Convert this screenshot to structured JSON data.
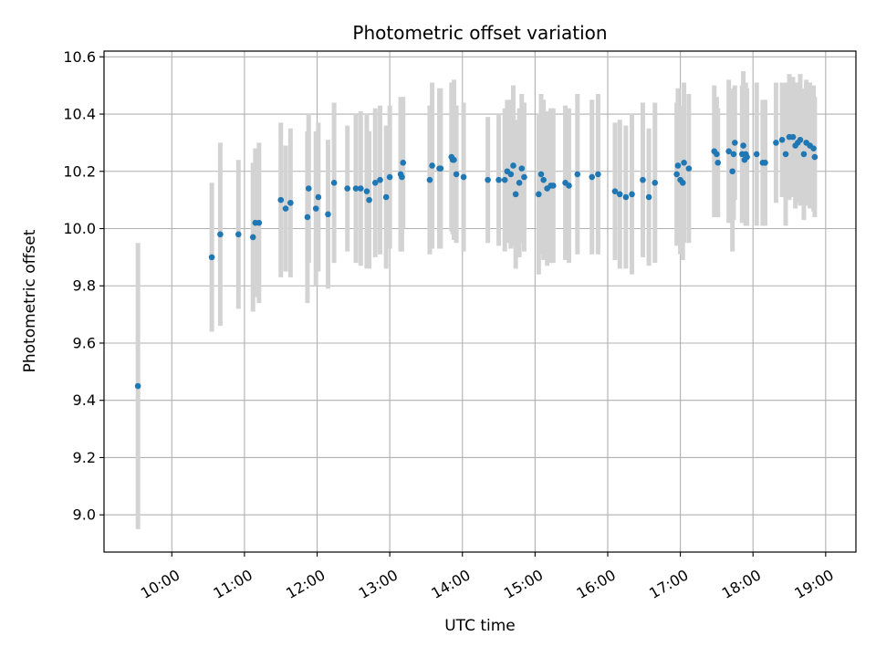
{
  "chart_data": {
    "type": "scatter",
    "title": "Photometric offset variation",
    "xlabel": "UTC time",
    "ylabel": "Photometric offset",
    "xlim": [
      "09:04",
      "19:25"
    ],
    "ylim": [
      8.87,
      10.62
    ],
    "x_ticks": [
      "10:00",
      "11:00",
      "12:00",
      "13:00",
      "14:00",
      "15:00",
      "16:00",
      "17:00",
      "18:00",
      "19:00"
    ],
    "y_ticks": [
      "9.0",
      "9.2",
      "9.4",
      "9.6",
      "9.8",
      "10.0",
      "10.2",
      "10.4",
      "10.6"
    ],
    "grid": true,
    "colors": {
      "points": "#1f77b4",
      "errorbars": "#d3d3d3",
      "grid": "#b0b0b0"
    },
    "series": [
      {
        "x": [
          "09:32",
          "10:33",
          "10:40",
          "10:55",
          "11:07",
          "11:09",
          "11:12",
          "11:30",
          "11:34",
          "11:38",
          "11:52",
          "11:53",
          "11:59",
          "12:01",
          "12:09",
          "12:14",
          "12:25",
          "12:32",
          "12:36",
          "12:41",
          "12:43",
          "12:48",
          "12:52",
          "12:57",
          "13:00",
          "13:09",
          "13:10",
          "13:11",
          "13:33",
          "13:35",
          "13:41",
          "13:42",
          "13:51",
          "13:52",
          "13:53",
          "13:55",
          "14:01",
          "14:21",
          "14:30",
          "14:35",
          "14:37",
          "14:40",
          "14:42",
          "14:44",
          "14:47",
          "14:49",
          "14:51",
          "15:03",
          "15:05",
          "15:07",
          "15:10",
          "15:13",
          "15:15",
          "15:25",
          "15:28",
          "15:35",
          "15:47",
          "15:52",
          "16:06",
          "16:10",
          "16:15",
          "16:20",
          "16:29",
          "16:34",
          "16:39",
          "16:57",
          "16:58",
          "17:00",
          "17:02",
          "17:03",
          "17:07",
          "17:28",
          "17:30",
          "17:31",
          "17:40",
          "17:43",
          "17:44",
          "17:45",
          "17:51",
          "17:52",
          "17:53",
          "17:54",
          "17:55",
          "18:03",
          "18:08",
          "18:10",
          "18:19",
          "18:24",
          "18:27",
          "18:30",
          "18:33",
          "18:35",
          "18:37",
          "18:39",
          "18:42",
          "18:44",
          "18:47",
          "18:50",
          "18:51"
        ],
        "y": [
          9.45,
          9.9,
          9.98,
          9.98,
          9.97,
          10.02,
          10.02,
          10.1,
          10.07,
          10.09,
          10.04,
          10.14,
          10.07,
          10.11,
          10.05,
          10.16,
          10.14,
          10.14,
          10.14,
          10.13,
          10.1,
          10.16,
          10.17,
          10.11,
          10.18,
          10.19,
          10.18,
          10.23,
          10.17,
          10.22,
          10.21,
          10.21,
          10.25,
          10.24,
          10.24,
          10.19,
          10.18,
          10.17,
          10.17,
          10.17,
          10.2,
          10.19,
          10.22,
          10.12,
          10.16,
          10.21,
          10.18,
          10.12,
          10.19,
          10.17,
          10.14,
          10.15,
          10.15,
          10.16,
          10.15,
          10.19,
          10.18,
          10.19,
          10.13,
          10.12,
          10.11,
          10.12,
          10.17,
          10.11,
          10.16,
          10.19,
          10.22,
          10.17,
          10.16,
          10.23,
          10.21,
          10.27,
          10.26,
          10.23,
          10.27,
          10.2,
          10.26,
          10.3,
          10.26,
          10.29,
          10.24,
          10.26,
          10.25,
          10.26,
          10.23,
          10.23,
          10.3,
          10.31,
          10.26,
          10.32,
          10.32,
          10.29,
          10.3,
          10.31,
          10.26,
          10.3,
          10.29,
          10.28,
          10.25
        ],
        "yerr": [
          0.5,
          0.26,
          0.32,
          0.26,
          0.26,
          0.26,
          0.28,
          0.27,
          0.22,
          0.26,
          0.3,
          0.26,
          0.27,
          0.26,
          0.26,
          0.28,
          0.22,
          0.26,
          0.27,
          0.27,
          0.24,
          0.26,
          0.26,
          0.25,
          0.25,
          0.27,
          0.26,
          0.23,
          0.26,
          0.29,
          0.28,
          0.28,
          0.26,
          0.26,
          0.28,
          0.24,
          0.26,
          0.22,
          0.23,
          0.25,
          0.25,
          0.26,
          0.28,
          0.26,
          0.26,
          0.26,
          0.26,
          0.28,
          0.28,
          0.28,
          0.27,
          0.27,
          0.27,
          0.27,
          0.27,
          0.28,
          0.27,
          0.28,
          0.24,
          0.26,
          0.25,
          0.28,
          0.27,
          0.24,
          0.28,
          0.25,
          0.27,
          0.26,
          0.27,
          0.28,
          0.26,
          0.23,
          0.2,
          0.19,
          0.25,
          0.28,
          0.23,
          0.2,
          0.24,
          0.26,
          0.22,
          0.25,
          0.24,
          0.25,
          0.22,
          0.22,
          0.21,
          0.2,
          0.25,
          0.22,
          0.21,
          0.22,
          0.21,
          0.23,
          0.23,
          0.22,
          0.22,
          0.22,
          0.21
        ]
      }
    ]
  }
}
